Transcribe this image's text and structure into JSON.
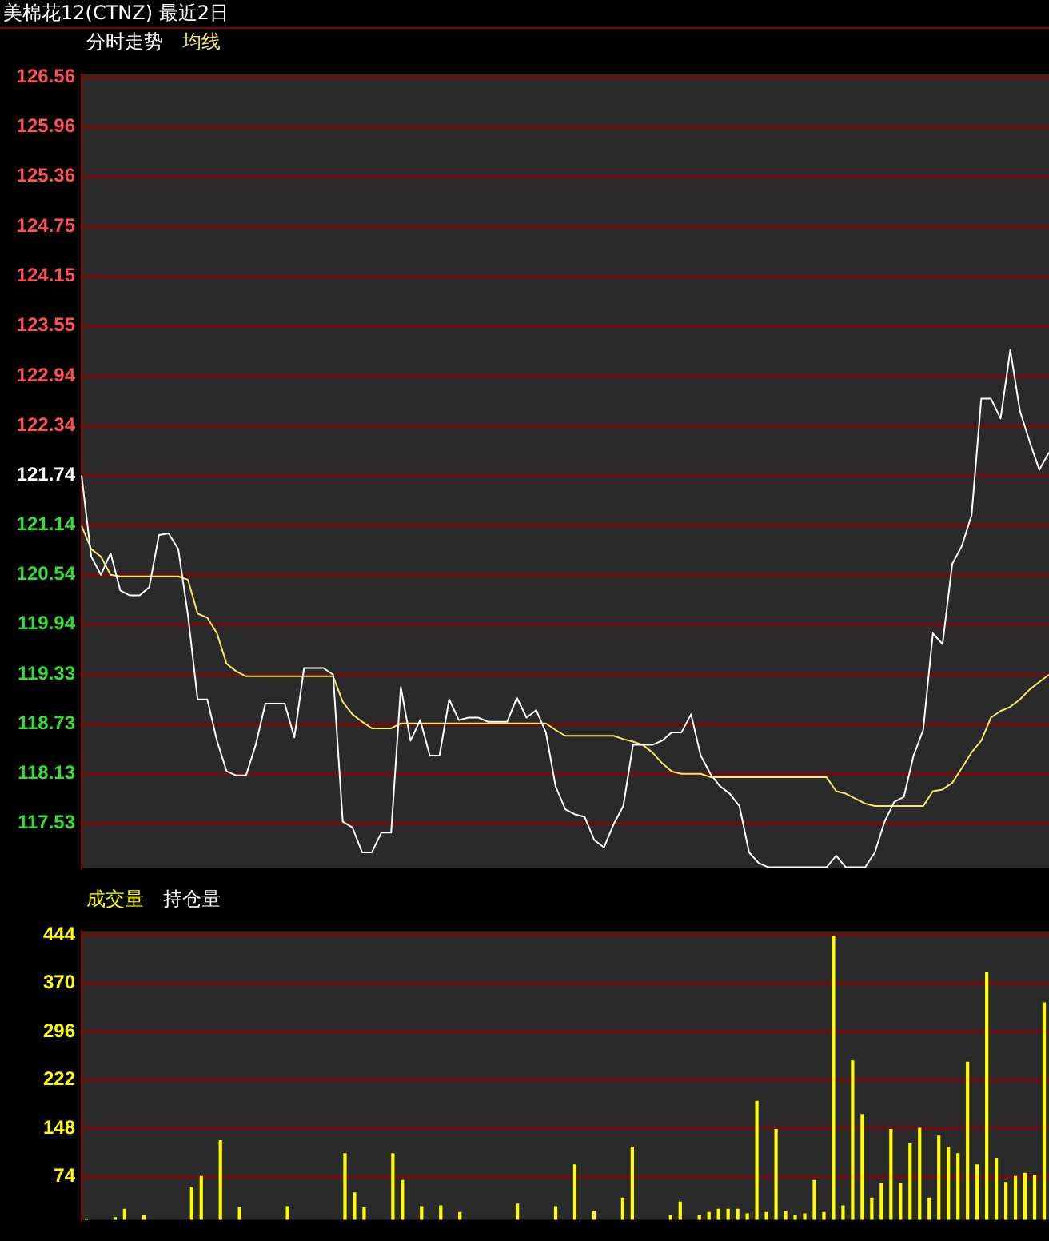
{
  "chart_data": [
    {
      "type": "line",
      "title": "美棉花12(CTNZ) 最近2日",
      "categories": [
        null,
        null,
        null,
        null,
        null,
        null,
        null,
        null,
        null,
        null,
        null,
        null,
        null,
        null,
        null,
        null,
        null,
        null,
        null,
        null,
        null,
        null,
        null,
        null,
        null,
        null,
        null,
        null,
        null,
        null,
        null,
        null,
        null,
        null,
        null,
        null,
        null,
        null,
        null,
        null,
        null,
        null,
        null,
        null,
        null,
        null,
        null,
        null,
        null,
        null,
        null,
        null,
        null,
        null,
        null,
        null,
        null,
        null,
        null,
        null,
        null,
        null,
        null,
        null,
        null,
        null,
        null,
        null,
        null,
        null,
        null,
        null,
        null,
        null,
        null,
        null,
        null,
        null,
        null,
        null,
        null,
        null,
        null,
        null,
        null,
        null,
        null,
        null,
        null,
        null,
        null,
        null,
        null,
        null,
        null,
        null,
        null,
        null,
        null,
        null,
        null
      ],
      "series": [
        {
          "name": "分时走势",
          "color": "#ffffff",
          "values": [
            121.74,
            120.76,
            120.54,
            120.8,
            120.35,
            120.29,
            120.29,
            120.39,
            121.02,
            121.04,
            120.85,
            120.05,
            119.03,
            119.03,
            118.53,
            118.16,
            118.11,
            118.11,
            118.48,
            118.98,
            118.98,
            118.98,
            118.57,
            119.41,
            119.41,
            119.41,
            119.33,
            117.55,
            117.48,
            117.18,
            117.18,
            117.42,
            117.42,
            119.18,
            118.53,
            118.78,
            118.35,
            118.35,
            119.03,
            118.78,
            118.81,
            118.81,
            118.76,
            118.76,
            118.76,
            119.05,
            118.81,
            118.9,
            118.63,
            117.98,
            117.7,
            117.64,
            117.61,
            117.33,
            117.24,
            117.52,
            117.74,
            118.48,
            118.48,
            118.48,
            118.53,
            118.63,
            118.63,
            118.85,
            118.35,
            118.13,
            117.98,
            117.89,
            117.74,
            117.18,
            117.05,
            117.0,
            117.0,
            117.0,
            117.0,
            117.0,
            117.0,
            117.0,
            117.14,
            117.0,
            117.0,
            117.0,
            117.18,
            117.55,
            117.79,
            117.85,
            118.35,
            118.66,
            119.83,
            119.7,
            120.67,
            120.89,
            121.26,
            122.67,
            122.67,
            122.43,
            123.26,
            122.52,
            122.15,
            121.81,
            122.02
          ]
        },
        {
          "name": "均线",
          "color": "#f2e86b",
          "values": [
            121.13,
            120.85,
            120.76,
            120.54,
            120.52,
            120.52,
            120.52,
            120.52,
            120.52,
            120.52,
            120.52,
            120.48,
            120.07,
            120.02,
            119.83,
            119.46,
            119.37,
            119.31,
            119.31,
            119.31,
            119.31,
            119.31,
            119.31,
            119.31,
            119.31,
            119.31,
            119.31,
            119.0,
            118.85,
            118.76,
            118.68,
            118.68,
            118.68,
            118.74,
            118.74,
            118.74,
            118.74,
            118.74,
            118.74,
            118.74,
            118.74,
            118.74,
            118.74,
            118.74,
            118.74,
            118.74,
            118.74,
            118.74,
            118.74,
            118.66,
            118.59,
            118.59,
            118.59,
            118.59,
            118.59,
            118.59,
            118.55,
            118.52,
            118.48,
            118.39,
            118.26,
            118.16,
            118.13,
            118.13,
            118.13,
            118.09,
            118.09,
            118.09,
            118.09,
            118.09,
            118.09,
            118.09,
            118.09,
            118.09,
            118.09,
            118.09,
            118.09,
            118.09,
            117.92,
            117.89,
            117.83,
            117.77,
            117.74,
            117.74,
            117.74,
            117.74,
            117.74,
            117.74,
            117.92,
            117.94,
            118.02,
            118.2,
            118.39,
            118.53,
            118.81,
            118.89,
            118.94,
            119.03,
            119.15,
            119.24,
            119.33
          ]
        }
      ],
      "ylim": [
        116.99,
        126.6
      ],
      "yticks": [
        126.56,
        125.96,
        125.36,
        124.75,
        124.15,
        123.55,
        122.94,
        122.34,
        121.74,
        121.14,
        120.54,
        119.94,
        119.33,
        118.73,
        118.13,
        117.53
      ],
      "grid": "y",
      "legend": "top left",
      "tick_labels": "y",
      "marker": "none"
    },
    {
      "type": "bar",
      "categories": [
        null,
        null,
        null,
        null,
        null,
        null,
        null,
        null,
        null,
        null,
        null,
        null,
        null,
        null,
        null,
        null,
        null,
        null,
        null,
        null,
        null,
        null,
        null,
        null,
        null,
        null,
        null,
        null,
        null,
        null,
        null,
        null,
        null,
        null,
        null,
        null,
        null,
        null,
        null,
        null,
        null,
        null,
        null,
        null,
        null,
        null,
        null,
        null,
        null,
        null,
        null,
        null,
        null,
        null,
        null,
        null,
        null,
        null,
        null,
        null,
        null,
        null,
        null,
        null,
        null,
        null,
        null,
        null,
        null,
        null,
        null,
        null,
        null,
        null,
        null,
        null,
        null,
        null,
        null,
        null,
        null,
        null,
        null,
        null,
        null,
        null,
        null,
        null,
        null,
        null,
        null,
        null,
        null,
        null,
        null,
        null,
        null,
        null,
        null,
        null,
        null
      ],
      "series": [
        {
          "name": "成交量",
          "color": "#ffff00",
          "values": [
            10,
            null,
            null,
            12,
            25,
            null,
            15,
            null,
            null,
            null,
            null,
            58,
            75,
            null,
            130,
            null,
            27,
            null,
            null,
            null,
            null,
            29,
            null,
            null,
            null,
            null,
            null,
            110,
            50,
            27,
            null,
            null,
            110,
            69,
            null,
            29,
            null,
            30,
            null,
            20,
            null,
            null,
            null,
            null,
            null,
            33,
            null,
            null,
            null,
            29,
            null,
            93,
            null,
            22,
            null,
            null,
            42,
            120,
            null,
            null,
            null,
            15,
            36,
            null,
            15,
            20,
            25,
            25,
            25,
            18,
            190,
            20,
            147,
            22,
            15,
            18,
            69,
            20,
            443,
            30,
            252,
            170,
            42,
            64,
            147,
            64,
            125,
            149,
            42,
            137,
            120,
            110,
            250,
            93,
            387,
            103,
            66,
            75,
            80,
            77,
            341
          ]
        }
      ],
      "annotations": [
        "持仓量"
      ],
      "ylim": [
        8,
        450
      ],
      "yticks": [
        444,
        370,
        296,
        222,
        148,
        74
      ],
      "grid": "y",
      "legend": "top left",
      "tick_labels": "y"
    }
  ]
}
